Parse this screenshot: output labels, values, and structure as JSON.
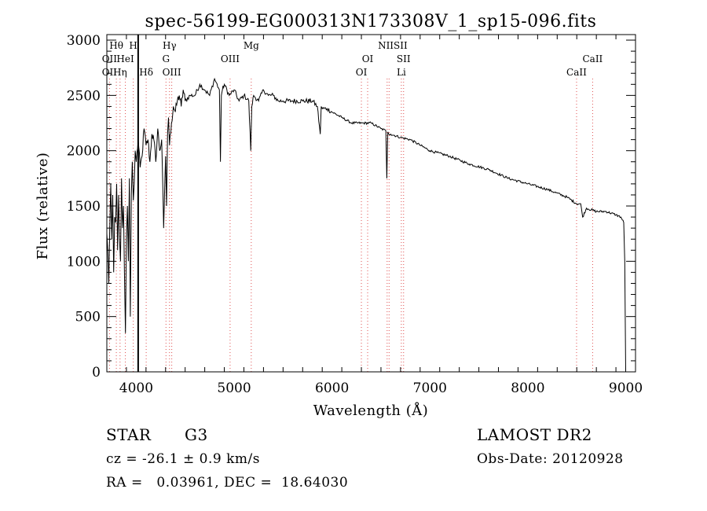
{
  "chart_data": {
    "type": "line",
    "title": "spec-56199-EG000313N173308V_1_sp15-096.fits",
    "xlabel": "Wavelength (Å)",
    "ylabel": "Flux (relative)",
    "xlim": [
      3700,
      9100
    ],
    "ylim": [
      0,
      3050
    ],
    "x_ticks": [
      4000,
      5000,
      6000,
      7000,
      8000,
      9000
    ],
    "y_ticks": [
      0,
      500,
      1000,
      1500,
      2000,
      2500,
      3000
    ],
    "grid": false,
    "series": [
      {
        "x": [
          3700,
          3710,
          3720,
          3730,
          3740,
          3750,
          3760,
          3770,
          3780,
          3790,
          3800,
          3810,
          3820,
          3830,
          3840,
          3850,
          3860,
          3870,
          3880,
          3890,
          3900,
          3910,
          3920,
          3930,
          3940,
          3950,
          3960,
          3970,
          3980,
          3990,
          4000,
          4020,
          4040,
          4060,
          4080,
          4100,
          4120,
          4140,
          4160,
          4180,
          4200,
          4220,
          4240,
          4260,
          4280,
          4300,
          4310,
          4320,
          4330,
          4340,
          4360,
          4380,
          4400,
          4420,
          4440,
          4460,
          4480,
          4500,
          4550,
          4600,
          4650,
          4700,
          4750,
          4800,
          4850,
          4860,
          4870,
          4880,
          4900,
          4950,
          5000,
          5050,
          5100,
          5150,
          5170,
          5180,
          5200,
          5250,
          5300,
          5350,
          5400,
          5450,
          5500,
          5600,
          5700,
          5800,
          5850,
          5880,
          5890,
          5900,
          5950,
          6000,
          6100,
          6200,
          6300,
          6400,
          6500,
          6550,
          6560,
          6565,
          6570,
          6580,
          6600,
          6700,
          6800,
          6900,
          7000,
          7200,
          7400,
          7600,
          7800,
          8000,
          8200,
          8400,
          8500,
          8540,
          8560,
          8600,
          8700,
          8800,
          8900,
          8950,
          8980,
          8990,
          9000
        ],
        "y": [
          1250,
          1100,
          800,
          1300,
          1700,
          1200,
          1600,
          900,
          1400,
          1350,
          1700,
          1100,
          1600,
          1200,
          1000,
          1750,
          1300,
          1500,
          900,
          350,
          1200,
          1500,
          1000,
          1750,
          500,
          1600,
          1900,
          1550,
          1700,
          2000,
          1900,
          2100,
          1850,
          1950,
          2200,
          2050,
          2100,
          1900,
          2150,
          2100,
          1900,
          2200,
          2000,
          2100,
          1300,
          1950,
          1500,
          2150,
          2300,
          2050,
          2250,
          2400,
          2350,
          2450,
          2500,
          2400,
          2550,
          2450,
          2500,
          2500,
          2600,
          2550,
          2500,
          2650,
          2550,
          1900,
          2500,
          2550,
          2600,
          2500,
          2550,
          2450,
          2500,
          2450,
          2000,
          2400,
          2500,
          2450,
          2550,
          2500,
          2500,
          2450,
          2450,
          2450,
          2450,
          2450,
          2400,
          2150,
          2400,
          2380,
          2380,
          2350,
          2300,
          2250,
          2250,
          2250,
          2200,
          2180,
          1750,
          2000,
          2170,
          2150,
          2150,
          2120,
          2100,
          2050,
          2000,
          1950,
          1880,
          1830,
          1750,
          1700,
          1650,
          1580,
          1520,
          1520,
          1400,
          1480,
          1450,
          1450,
          1420,
          1400,
          1350,
          1000,
          0
        ]
      }
    ],
    "line_annotations": {
      "top_row": [
        {
          "label": "Hθ",
          "x": 3797
        },
        {
          "label": "H",
          "x": 3970
        },
        {
          "label": "Hγ",
          "x": 4340
        },
        {
          "label": "Mg",
          "x": 5175
        },
        {
          "label": "NIISII",
          "x": 6620
        }
      ],
      "middle_row": [
        {
          "label": "OII",
          "x": 3727
        },
        {
          "label": "HeI",
          "x": 3889
        },
        {
          "label": "G",
          "x": 4304
        },
        {
          "label": "OIII",
          "x": 4959
        },
        {
          "label": "OI",
          "x": 6364
        },
        {
          "label": "SII",
          "x": 6731
        },
        {
          "label": "CaII",
          "x": 8662
        }
      ],
      "bottom_row": [
        {
          "label": "OII",
          "x": 3727
        },
        {
          "label": "Hη",
          "x": 3835
        },
        {
          "label": "Hδ",
          "x": 4102
        },
        {
          "label": "OIII",
          "x": 4363
        },
        {
          "label": "OI",
          "x": 6300
        },
        {
          "label": "Li",
          "x": 6708
        },
        {
          "label": "CaII",
          "x": 8498
        }
      ],
      "dotted_lines_x": [
        3727,
        3797,
        3835,
        3889,
        3970,
        4102,
        4304,
        4340,
        4363,
        4959,
        5175,
        6300,
        6364,
        6563,
        6583,
        6708,
        6731,
        8498,
        8662
      ],
      "solid_line_x": 4020
    }
  },
  "info": {
    "object_class": "STAR",
    "subclass": "G3",
    "survey": "LAMOST DR2",
    "cz": "cz = -26.1 ± 0.9 km/s",
    "obs_date": "Obs-Date: 20120928",
    "coords": "RA =   0.03961, DEC =  18.64030"
  },
  "colors": {
    "annotation_lines": "#e05050",
    "axis": "#000000",
    "spectrum": "#000000"
  }
}
